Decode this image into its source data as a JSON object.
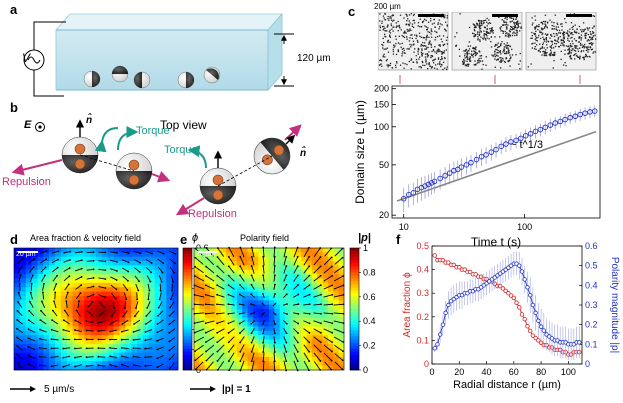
{
  "panels": {
    "a": {
      "label": "a",
      "voltage_symbol": "V",
      "gap_label": "120 µm"
    },
    "b": {
      "label": "b",
      "top_view": "Top view",
      "field_symbol": "E",
      "normal_symbol": "n̂",
      "torque": "Torque",
      "repulsion": "Repulsion"
    },
    "c": {
      "label": "c",
      "scalebar": "200 µm",
      "scaling_law": "~ t^1/3"
    },
    "d": {
      "label": "d",
      "title": "Area fraction & velocity field",
      "scalebar": "20 µm",
      "velocity_ref": "5 µm/s",
      "colorbar_symbol": "ϕ"
    },
    "e": {
      "label": "e",
      "title": "Polarity field",
      "scalebar": "20 µm",
      "polarity_ref": "|p| = 1",
      "colorbar_symbol": "|p|"
    },
    "f": {
      "label": "f"
    }
  },
  "chart_data": [
    {
      "type": "scatter",
      "panel": "c",
      "xlabel": "Time t (s)",
      "ylabel": "Domain size L (µm)",
      "xscale": "log",
      "yscale": "log",
      "xlim": [
        8,
        420
      ],
      "ylim": [
        19,
        210
      ],
      "xticks": [
        10,
        100
      ],
      "yticks": [
        20,
        50,
        100,
        150,
        200
      ],
      "series": [
        {
          "x": [
            10,
            11,
            12,
            13,
            14,
            15,
            16,
            17,
            18,
            20,
            22,
            24,
            26,
            28,
            30,
            33,
            36,
            40,
            44,
            48,
            53,
            58,
            64,
            70,
            77,
            85,
            93,
            102,
            112,
            123,
            135,
            148,
            163,
            179,
            197,
            216,
            238,
            262,
            288,
            316,
            347,
            380
          ],
          "y": [
            27,
            29,
            30,
            32,
            33,
            34,
            35,
            36,
            37,
            39,
            41,
            43,
            45,
            46,
            48,
            50,
            52,
            55,
            58,
            60,
            63,
            66,
            70,
            73,
            76,
            78,
            81,
            85,
            88,
            92,
            95,
            99,
            103,
            107,
            110,
            114,
            118,
            121,
            125,
            128,
            131,
            133
          ],
          "error": [
            6,
            6,
            6,
            7,
            7,
            7,
            7,
            7,
            7,
            7,
            7,
            8,
            8,
            8,
            8,
            8,
            8,
            8,
            9,
            9,
            9,
            9,
            9,
            10,
            10,
            10,
            10,
            10,
            11,
            11,
            11,
            12,
            12,
            12,
            12,
            13,
            13,
            13,
            14,
            14,
            14,
            14
          ]
        }
      ],
      "fit_exponent": 0.333
    },
    {
      "type": "line",
      "panel": "f",
      "xlabel": "Radial distance r (µm)",
      "ylabel": "Area fraction ϕ",
      "y2label": "Polarity magnitude |p|",
      "xlim": [
        0,
        110
      ],
      "ylim": [
        0,
        0.5
      ],
      "y2lim": [
        0,
        0.6
      ],
      "xticks": [
        0,
        20,
        40,
        60,
        80,
        100
      ],
      "yticks": [
        0,
        0.1,
        0.2,
        0.3,
        0.4,
        0.5
      ],
      "y2ticks": [
        0,
        0.1,
        0.2,
        0.3,
        0.4,
        0.5,
        0.6
      ],
      "series": [
        {
          "color": "#d62728",
          "axis": "left",
          "x": [
            2,
            4,
            6,
            8,
            10,
            12,
            14,
            16,
            18,
            20,
            22,
            24,
            26,
            28,
            30,
            32,
            34,
            36,
            38,
            40,
            42,
            44,
            46,
            48,
            50,
            52,
            54,
            56,
            58,
            60,
            62,
            64,
            66,
            68,
            70,
            72,
            74,
            76,
            78,
            80,
            82,
            84,
            86,
            88,
            90,
            92,
            94,
            96,
            98,
            100,
            102,
            104,
            106,
            108
          ],
          "y": [
            0.46,
            0.44,
            0.44,
            0.44,
            0.43,
            0.43,
            0.42,
            0.42,
            0.41,
            0.41,
            0.4,
            0.4,
            0.39,
            0.39,
            0.38,
            0.38,
            0.37,
            0.37,
            0.36,
            0.36,
            0.35,
            0.35,
            0.34,
            0.33,
            0.33,
            0.32,
            0.31,
            0.3,
            0.29,
            0.28,
            0.26,
            0.24,
            0.21,
            0.19,
            0.16,
            0.14,
            0.12,
            0.11,
            0.1,
            0.09,
            0.08,
            0.08,
            0.07,
            0.07,
            0.06,
            0.06,
            0.06,
            0.05,
            0.05,
            0.04,
            0.04,
            0.05,
            0.05,
            0.05
          ]
        },
        {
          "color": "#2433c4",
          "axis": "right",
          "x": [
            2,
            4,
            6,
            8,
            10,
            12,
            14,
            16,
            18,
            20,
            22,
            24,
            26,
            28,
            30,
            32,
            34,
            36,
            38,
            40,
            42,
            44,
            46,
            48,
            50,
            52,
            54,
            56,
            58,
            60,
            62,
            64,
            66,
            68,
            70,
            72,
            74,
            76,
            78,
            80,
            82,
            84,
            86,
            88,
            90,
            92,
            94,
            96,
            98,
            100,
            102,
            104,
            106,
            108
          ],
          "y": [
            0.08,
            0.1,
            0.15,
            0.2,
            0.26,
            0.3,
            0.32,
            0.33,
            0.34,
            0.35,
            0.35,
            0.36,
            0.36,
            0.37,
            0.37,
            0.38,
            0.38,
            0.39,
            0.4,
            0.41,
            0.42,
            0.43,
            0.44,
            0.45,
            0.46,
            0.47,
            0.48,
            0.49,
            0.5,
            0.51,
            0.51,
            0.5,
            0.47,
            0.43,
            0.39,
            0.35,
            0.3,
            0.26,
            0.22,
            0.19,
            0.17,
            0.15,
            0.14,
            0.13,
            0.12,
            0.12,
            0.11,
            0.11,
            0.11,
            0.1,
            0.1,
            0.1,
            0.11,
            0.11
          ],
          "error": [
            0.02,
            0.03,
            0.04,
            0.05,
            0.06,
            0.07,
            0.07,
            0.07,
            0.07,
            0.07,
            0.07,
            0.06,
            0.06,
            0.06,
            0.06,
            0.06,
            0.06,
            0.06,
            0.06,
            0.06,
            0.06,
            0.06,
            0.06,
            0.06,
            0.06,
            0.06,
            0.06,
            0.06,
            0.06,
            0.06,
            0.06,
            0.07,
            0.07,
            0.07,
            0.08,
            0.09,
            0.09,
            0.09,
            0.09,
            0.09,
            0.09,
            0.08,
            0.08,
            0.08,
            0.08,
            0.08,
            0.08,
            0.08,
            0.08,
            0.08,
            0.08,
            0.08,
            0.08,
            0.08
          ]
        }
      ]
    }
  ]
}
